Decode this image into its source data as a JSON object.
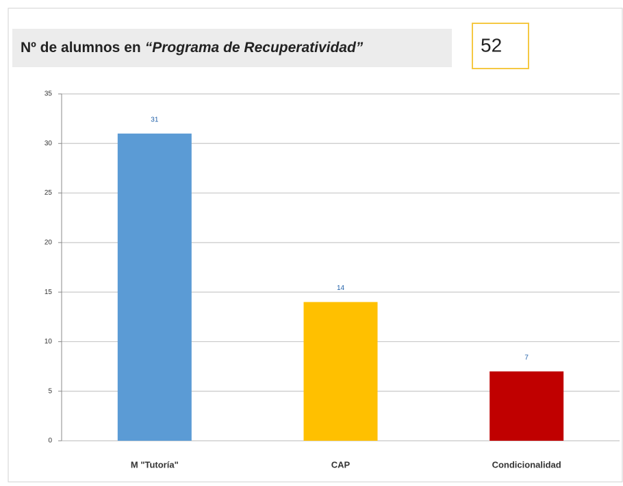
{
  "chart_data": {
    "type": "bar",
    "title": "Nº de alumnos en",
    "title_emphasis": "“Programa de Recuperatividad”",
    "total": 52,
    "categories": [
      "M \"Tutoría\"",
      "CAP",
      "Condicionalidad"
    ],
    "values": [
      31,
      14,
      7
    ],
    "colors": [
      "#5b9bd5",
      "#ffc000",
      "#c00000"
    ],
    "ylim": [
      0,
      35
    ],
    "yticks": [
      0,
      5,
      10,
      15,
      20,
      25,
      30,
      35
    ],
    "grid": true
  }
}
